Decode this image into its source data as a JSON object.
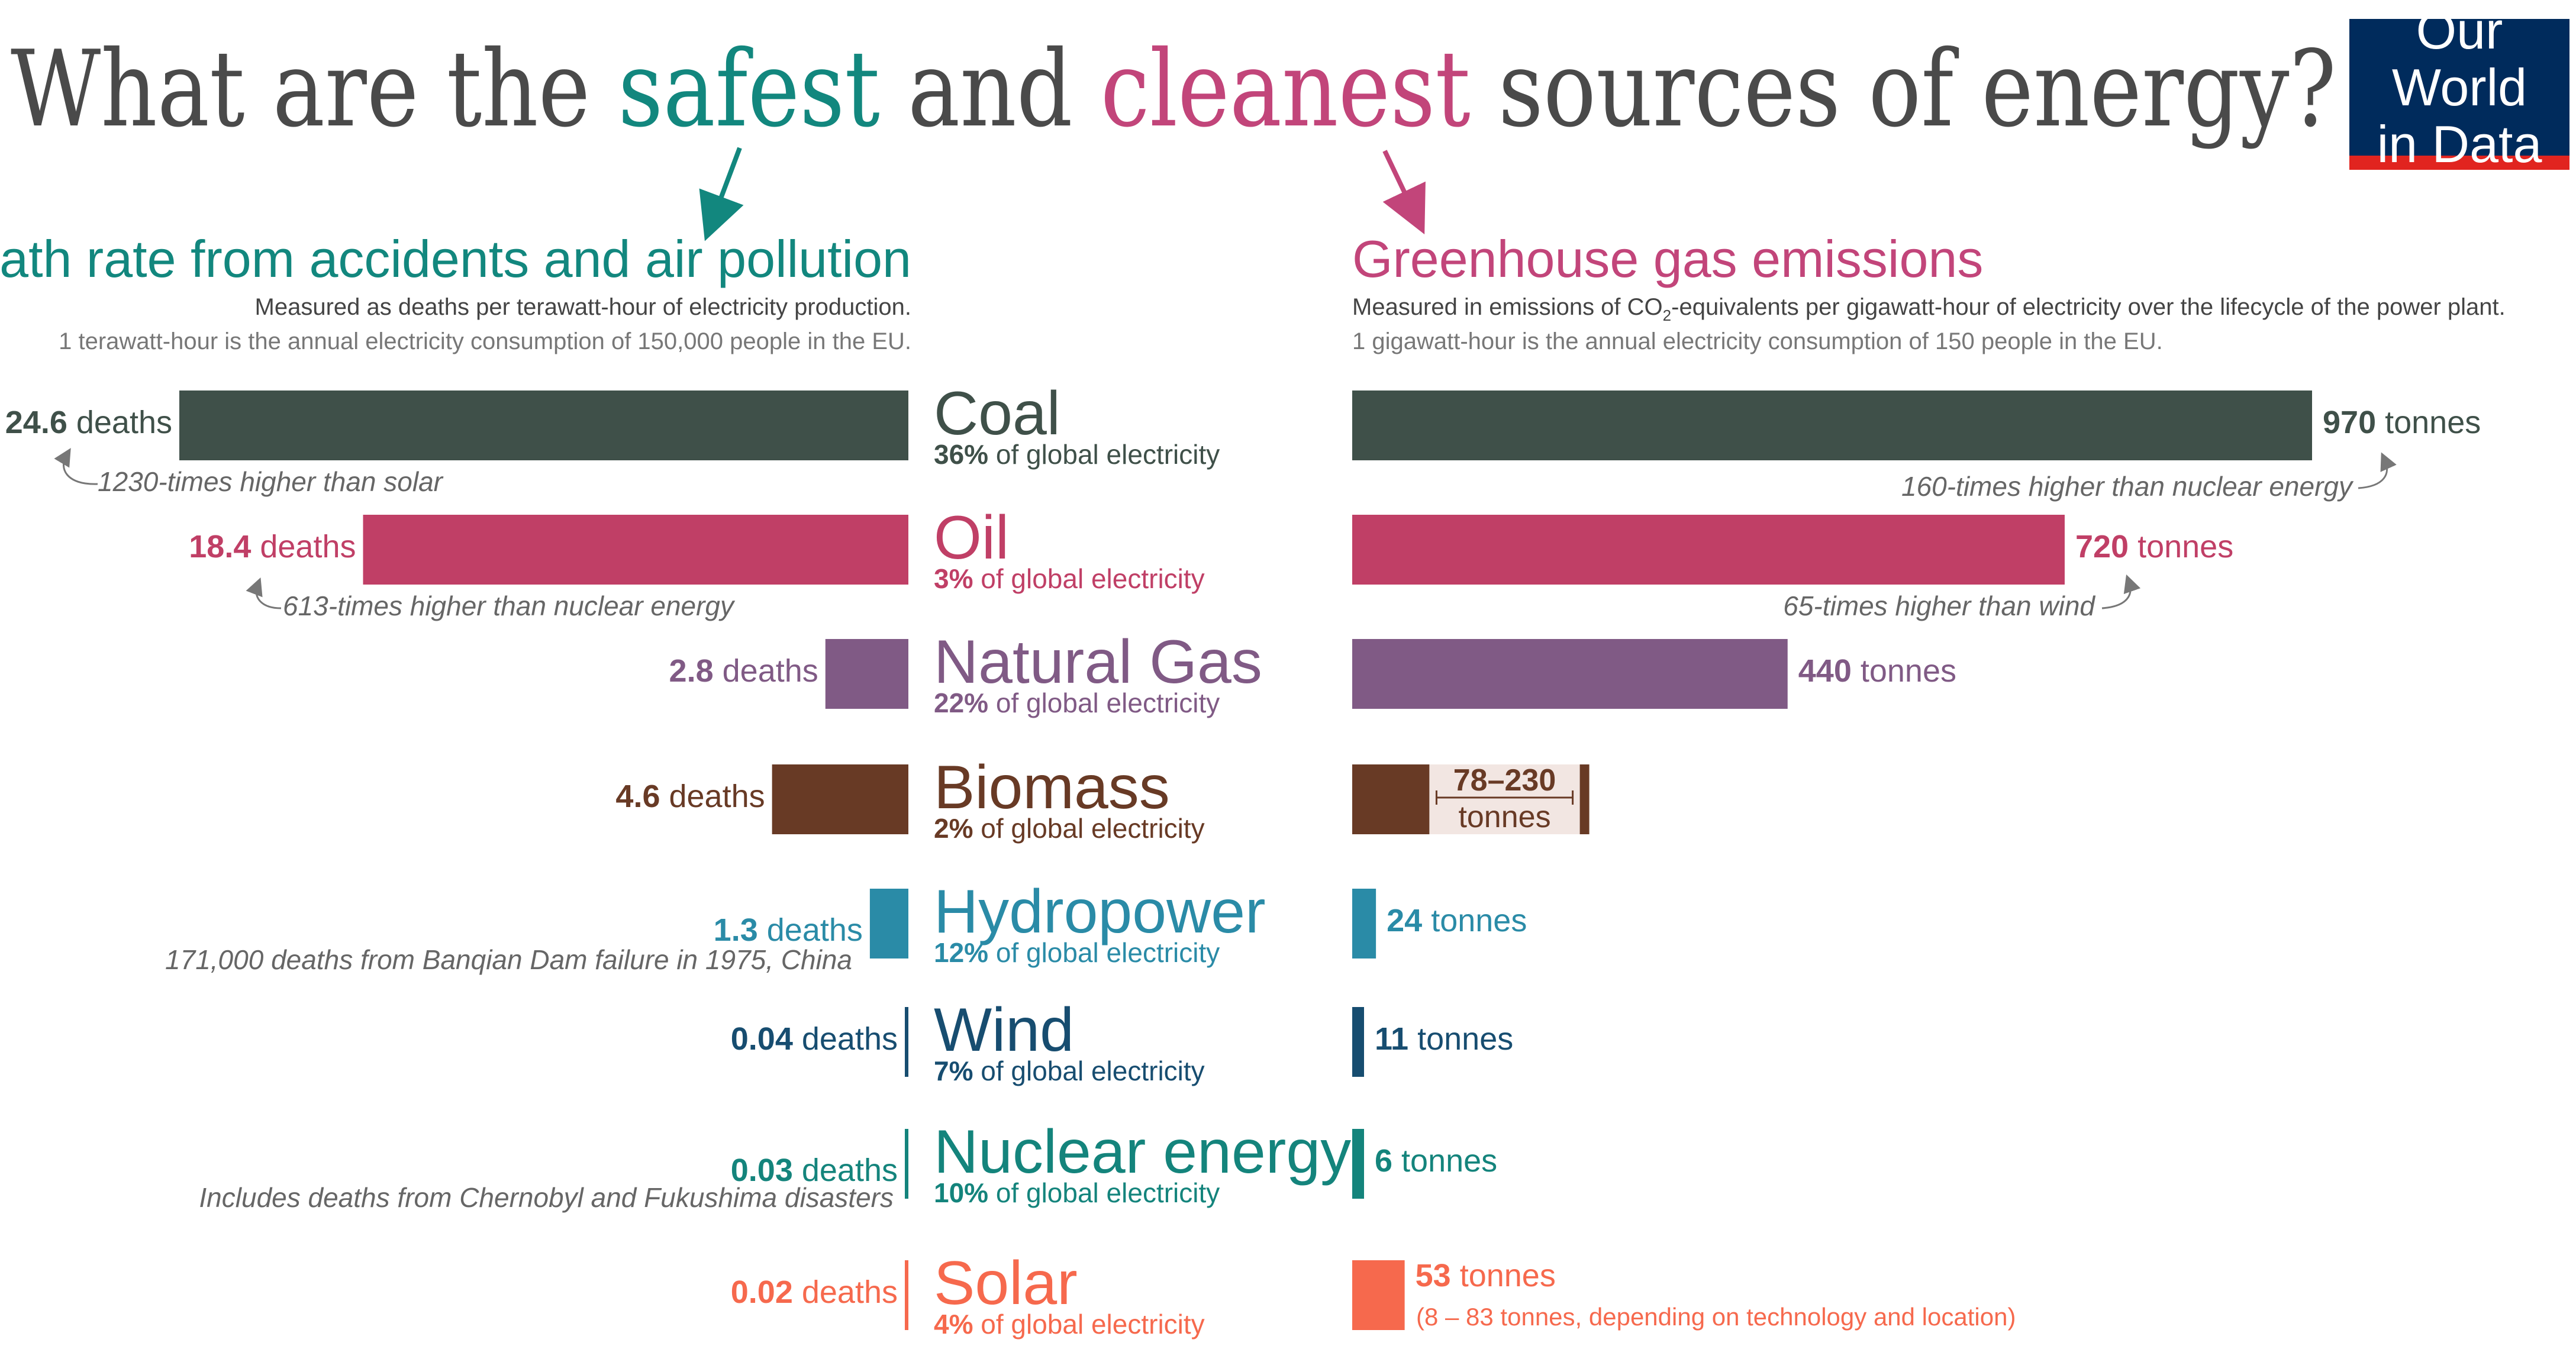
{
  "title": {
    "part1": "What are the ",
    "safest": "safest",
    "part2": " and ",
    "cleanest": "cleanest",
    "part3": " sources of energy?"
  },
  "logo": {
    "line1": "Our World",
    "line2": "in Data"
  },
  "colors": {
    "teal_heading": "#12877e",
    "pink_heading": "#c2457a",
    "coal": "#3f5049",
    "oil": "#c03f66",
    "gas": "#805a85",
    "biomass": "#683a25",
    "biomass_range_fill": "#f2e6e2",
    "hydro": "#2a8ba7",
    "wind": "#174d70",
    "nuclear": "#14847c",
    "solar": "#f6694d",
    "grey_text": "#666666"
  },
  "left_panel": {
    "title": "Death rate from accidents and air pollution",
    "subtitle": "Measured as deaths per terawatt-hour of electricity production.",
    "note": "1 terawatt-hour is the annual electricity consumption of 150,000 people in the EU."
  },
  "right_panel": {
    "title": "Greenhouse gas emissions",
    "subtitle_pre": "Measured in emissions of CO",
    "subtitle_sub": "2",
    "subtitle_post": "-equivalents per gigawatt-hour of electricity over the lifecycle of the power plant.",
    "note": "1 gigawatt-hour is the annual electricity consumption of 150 people in the EU."
  },
  "chart_data": [
    {
      "type": "bar",
      "title": "Death rate from accidents and air pollution",
      "unit": "deaths",
      "categories": [
        "Coal",
        "Oil",
        "Natural Gas",
        "Biomass",
        "Hydropower",
        "Wind",
        "Nuclear energy",
        "Solar"
      ],
      "values": [
        24.6,
        18.4,
        2.8,
        4.6,
        1.3,
        0.04,
        0.03,
        0.02
      ],
      "labels": [
        "24.6",
        "18.4",
        "2.8",
        "4.6",
        "1.3",
        "0.04",
        "0.03",
        "0.02"
      ],
      "suffix": "deaths",
      "share_of_global_electricity": [
        "36%",
        "3%",
        "22%",
        "2%",
        "12%",
        "7%",
        "10%",
        "4%"
      ],
      "share_suffix": "of global electricity",
      "annotations": {
        "Coal": "1230-times higher than solar",
        "Oil": "613-times higher than nuclear energy",
        "Hydropower": "171,000 deaths from Banqian Dam failure in 1975, China",
        "Nuclear energy": "Includes deaths from Chernobyl and Fukushima disasters"
      }
    },
    {
      "type": "bar",
      "title": "Greenhouse gas emissions",
      "unit": "tonnes",
      "categories": [
        "Coal",
        "Oil",
        "Natural Gas",
        "Biomass",
        "Hydropower",
        "Wind",
        "Nuclear energy",
        "Solar"
      ],
      "values": [
        970,
        720,
        440,
        154,
        24,
        11,
        6,
        53
      ],
      "labels": [
        "970",
        "720",
        "440",
        "78–230",
        "24",
        "11",
        "6",
        "53"
      ],
      "suffix": "tonnes",
      "biomass_range": [
        78,
        230
      ],
      "annotations": {
        "Coal": "160-times higher than nuclear energy",
        "Oil": "65-times higher than wind",
        "Solar": "(8 – 83 tonnes, depending on technology and location)"
      }
    }
  ]
}
